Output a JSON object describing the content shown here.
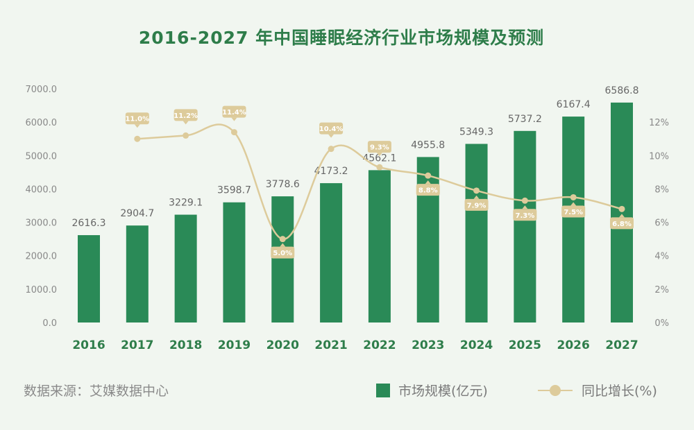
{
  "colors": {
    "bar": "#2a8a57",
    "line": "#ddcb9b",
    "title": "#2e7d4a",
    "background": "#f1f6f0"
  },
  "footer": {
    "source": "数据来源：艾媒数据中心"
  },
  "legend": {
    "bar_label": "市场规模(亿元)",
    "line_label": "同比增长(%)"
  },
  "chart_data": {
    "type": "bar",
    "title": "2016-2027 年中国睡眠经济行业市场规模及预测",
    "categories": [
      "2016",
      "2017",
      "2018",
      "2019",
      "2020",
      "2021",
      "2022",
      "2023",
      "2024",
      "2025",
      "2026",
      "2027"
    ],
    "left_ticks": [
      "0.0",
      "1000.0",
      "2000.0",
      "3000.0",
      "4000.0",
      "5000.0",
      "6000.0",
      "7000.0"
    ],
    "right_ticks": [
      "0%",
      "2%",
      "4%",
      "6%",
      "8%",
      "10%",
      "12%"
    ],
    "ylim_left": [
      0,
      7000
    ],
    "ylim_right": [
      0,
      14
    ],
    "series": [
      {
        "name": "市场规模(亿元)",
        "type": "bar",
        "values": [
          2616.3,
          2904.7,
          3229.1,
          3598.7,
          3778.6,
          4173.2,
          4562.1,
          4955.8,
          5349.3,
          5737.2,
          6167.4,
          6586.8
        ],
        "labels": [
          "2616.3",
          "2904.7",
          "3229.1",
          "3598.7",
          "3778.6",
          "4173.2",
          "4562.1",
          "4955.8",
          "5349.3",
          "5737.2",
          "6167.4",
          "6586.8"
        ]
      },
      {
        "name": "同比增长(%)",
        "type": "line",
        "values": [
          null,
          11.0,
          11.2,
          11.4,
          5.0,
          10.4,
          9.3,
          8.8,
          7.9,
          7.3,
          7.5,
          6.8
        ],
        "labels": [
          "",
          "11.0%",
          "11.2%",
          "11.4%",
          "5.0%",
          "10.4%",
          "9.3%",
          "8.8%",
          "7.9%",
          "7.3%",
          "7.5%",
          "6.8%"
        ]
      }
    ]
  }
}
